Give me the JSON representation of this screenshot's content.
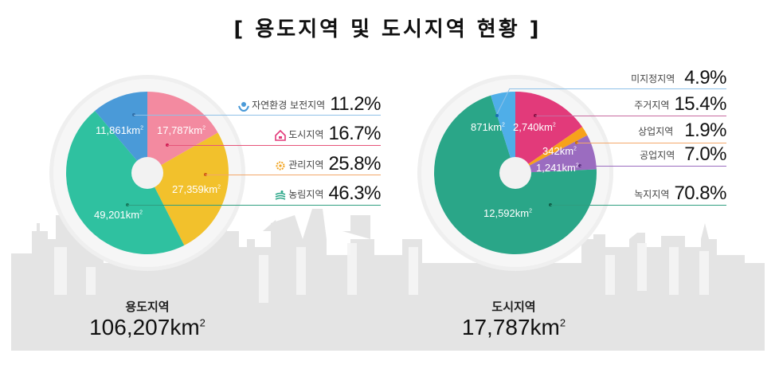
{
  "title": "[ 용도지역 및 도시지역 현황 ]",
  "unit": "km",
  "unit_sup": "2",
  "left": {
    "name": "용도지역",
    "total": "106,207",
    "slices": [
      {
        "label": "자연환경 보전지역",
        "area": "11,861",
        "pct": "11.2%",
        "color": "#4a9ad8",
        "icon": "nature-protection-icon",
        "line_color": "#8fc1e8"
      },
      {
        "label": "도시지역",
        "area": "17,787",
        "pct": "16.7%",
        "color": "#f38aa0",
        "icon": "house-icon",
        "line_color": "#e6557a"
      },
      {
        "label": "관리지역",
        "area": "27,359",
        "pct": "25.8%",
        "color": "#f2c12c",
        "icon": "gear-icon",
        "line_color": "#f3a86b"
      },
      {
        "label": "농림지역",
        "area": "49,201",
        "pct": "46.3%",
        "color": "#2fc1a0",
        "icon": "farmland-icon",
        "line_color": "#2f9e80"
      }
    ]
  },
  "right": {
    "name": "도시지역",
    "total": "17,787",
    "slices": [
      {
        "label": "미지정지역",
        "area": "871",
        "pct": "4.9%",
        "color": "#4faee8",
        "line_color": "#8fc1e8"
      },
      {
        "label": "주거지역",
        "area": "2,740",
        "pct": "15.4%",
        "color": "#e23a7a",
        "line_color": "#c86aa0"
      },
      {
        "label": "상업지역",
        "area": "342",
        "pct": "1.9%",
        "color": "#f7a21b",
        "line_color": "#f3a86b"
      },
      {
        "label": "공업지역",
        "area": "1,241",
        "pct": "7.0%",
        "color": "#9b6cc0",
        "line_color": "#9b6cc0"
      },
      {
        "label": "녹지지역",
        "area": "12,592",
        "pct": "70.8%",
        "color": "#2aa688",
        "line_color": "#2f9e80"
      }
    ]
  },
  "chart_data": [
    {
      "type": "pie",
      "title": "용도지역 106,207km²",
      "categories": [
        "자연환경 보전지역",
        "도시지역",
        "관리지역",
        "농림지역"
      ],
      "values": [
        11861,
        17787,
        27359,
        49201
      ],
      "percentages": [
        11.2,
        16.7,
        25.8,
        46.3
      ],
      "unit": "km²"
    },
    {
      "type": "pie",
      "title": "도시지역 17,787km²",
      "categories": [
        "미지정지역",
        "주거지역",
        "상업지역",
        "공업지역",
        "녹지지역"
      ],
      "values": [
        871,
        2740,
        342,
        1241,
        12592
      ],
      "percentages": [
        4.9,
        15.4,
        1.9,
        7.0,
        70.8
      ],
      "unit": "km²"
    }
  ]
}
